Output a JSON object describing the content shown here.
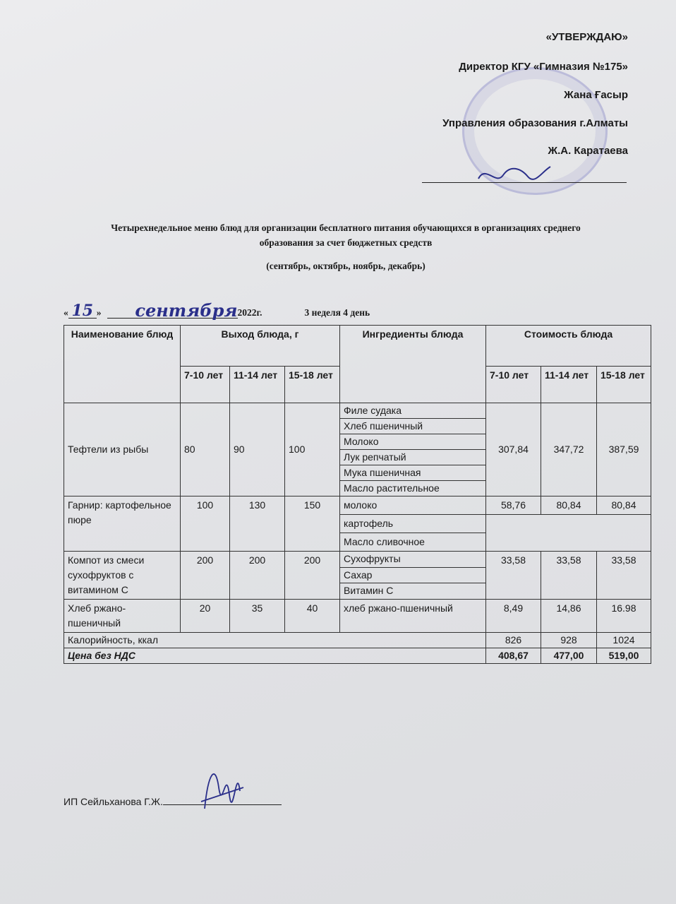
{
  "approval": {
    "heading": "«УТВЕРЖДАЮ»",
    "line1": "Директор КГУ «Гимназия №175»",
    "line2": "Жана Ғасыр",
    "line3": "Управления образования г.Алматы",
    "line4": "Ж.А. Каратаева"
  },
  "title": {
    "line1": "Четырехнедельное меню блюд для организации бесплатного питания   обучающихся в организациях среднего",
    "line2": "образования за счет бюджетных средств",
    "months": "(сентябрь, октябрь, ноябрь, декабрь)"
  },
  "date": {
    "open_quote": "«",
    "day": "15",
    "close_quote": "»",
    "month": "сентября",
    "year": "2022г.",
    "week_day": "3 неделя 4 день"
  },
  "table": {
    "headers": {
      "dish": "Наименование блюд",
      "yield": "Выход блюда, г",
      "ingredients": "Ингредиенты блюда",
      "cost": "Стоимость блюда",
      "ages": [
        "7-10 лет",
        "11-14 лет",
        "15-18 лет"
      ],
      "cost_ages": [
        "7-10 лет",
        "11-14 лет",
        "15-18 лет"
      ]
    },
    "dishes": [
      {
        "name": "Тефтели из рыбы",
        "yield": [
          "80",
          "90",
          "100"
        ],
        "ingredients": [
          "Филе судака",
          "Хлеб пшеничный",
          "Молоко",
          "Лук репчатый",
          "Мука пшеничная",
          "Масло растительное"
        ],
        "cost": [
          "307,84",
          "347,72",
          "387,59"
        ]
      },
      {
        "name": "Гарнир: картофельное пюре",
        "yield": [
          "100",
          "130",
          "150"
        ],
        "ingredients": [
          "молоко",
          "картофель",
          "Масло сливочное"
        ],
        "cost": [
          "58,76",
          "80,84",
          "80,84"
        ]
      },
      {
        "name": "Компот из смеси сухофруктов с витамином С",
        "yield": [
          "200",
          "200",
          "200"
        ],
        "ingredients": [
          " Сухофрукты",
          "Сахар",
          "Витамин С"
        ],
        "cost": [
          "33,58",
          "33,58",
          "33,58"
        ]
      },
      {
        "name": "Хлеб ржано-пшеничный",
        "yield": [
          "20",
          "35",
          "40"
        ],
        "ingredients": [
          "хлеб ржано-пшеничный"
        ],
        "cost": [
          "8,49",
          "14,86",
          "16.98"
        ]
      }
    ],
    "calories": {
      "label": "Калорийность, ккал",
      "values": [
        "826",
        "928",
        "1024"
      ]
    },
    "price": {
      "label": "Цена без НДС",
      "values": [
        "408,67",
        "477,00",
        "519,00"
      ]
    }
  },
  "signature": {
    "label": "ИП Сейльханова Г.Ж."
  }
}
